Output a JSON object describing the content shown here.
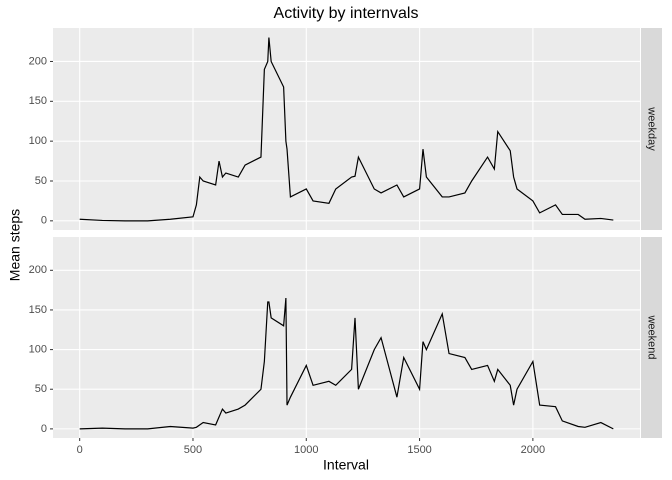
{
  "chart_data": {
    "type": "line",
    "title": "Activity by internvals",
    "x_label": "Interval",
    "y_label": "Mean steps",
    "facets": true,
    "grid": true,
    "color": "#000000",
    "xlim": [
      -117.75,
      2472.75
    ],
    "xticks": [
      0,
      500,
      1000,
      1500,
      2000
    ],
    "ylim": [
      -11.5,
      242
    ],
    "yticks": [
      0,
      50,
      100,
      150,
      200
    ],
    "x": [
      0,
      100,
      200,
      300,
      400,
      500,
      515,
      530,
      545,
      600,
      615,
      630,
      645,
      700,
      730,
      800,
      815,
      830,
      835,
      845,
      900,
      910,
      915,
      930,
      1000,
      1030,
      1100,
      1130,
      1200,
      1215,
      1230,
      1300,
      1330,
      1400,
      1430,
      1500,
      1515,
      1530,
      1600,
      1630,
      1700,
      1730,
      1800,
      1830,
      1845,
      1900,
      1915,
      1930,
      2000,
      2030,
      2100,
      2130,
      2200,
      2230,
      2300,
      2355
    ],
    "series": [
      {
        "name": "weekday",
        "values": [
          2,
          0.5,
          0,
          0,
          2,
          5,
          20,
          55,
          50,
          45,
          75,
          55,
          60,
          55,
          70,
          80,
          190,
          200,
          230,
          200,
          168,
          100,
          90,
          30,
          40,
          25,
          22,
          40,
          55,
          56,
          80,
          40,
          35,
          45,
          30,
          40,
          90,
          55,
          30,
          30,
          35,
          50,
          80,
          65,
          112,
          88,
          55,
          40,
          25,
          10,
          20,
          8,
          8,
          2,
          3,
          1
        ]
      },
      {
        "name": "weekend",
        "values": [
          0,
          1,
          0,
          0,
          3,
          1,
          2,
          5,
          8,
          5,
          15,
          25,
          20,
          25,
          30,
          50,
          85,
          160,
          160,
          140,
          130,
          165,
          30,
          40,
          80,
          55,
          60,
          55,
          75,
          140,
          50,
          100,
          115,
          40,
          90,
          50,
          110,
          100,
          145,
          95,
          90,
          75,
          80,
          60,
          75,
          55,
          30,
          50,
          85,
          30,
          28,
          10,
          3,
          2,
          8,
          0
        ]
      }
    ]
  }
}
